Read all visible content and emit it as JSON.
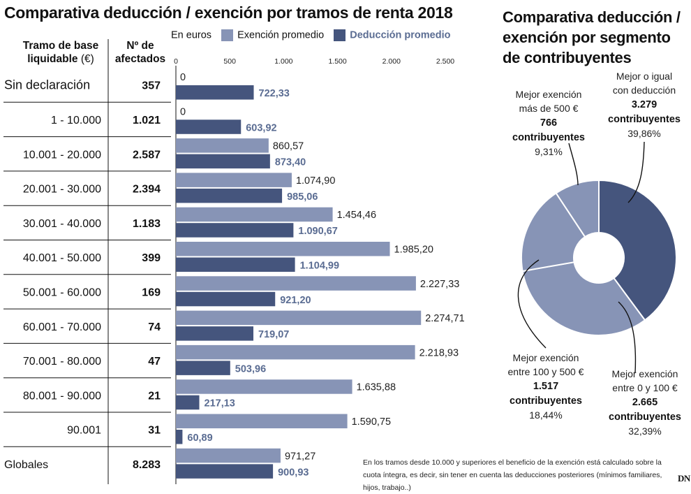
{
  "titles": {
    "left": "Comparativa deducción / exención por tramos de renta 2018",
    "right": "Comparativa deducción / exención por segmento de contribuyentes"
  },
  "table": {
    "col1_header": "Tramo de base liquidable",
    "col1_header_unit": "(€)",
    "col2_header": "Nº de afectados",
    "units_label": "En euros"
  },
  "colors": {
    "exencion": "#8794b6",
    "deduccion": "#45557d",
    "deduccion_text": "#5a6c92"
  },
  "chart_data": [
    {
      "type": "bar",
      "title": "Comparativa deducción / exención por tramos de renta 2018",
      "xlabel": "En euros",
      "xlim": [
        0,
        2500
      ],
      "xticks": [
        "0",
        "500",
        "1.000",
        "1.500",
        "2.000",
        "2.500"
      ],
      "xtick_values": [
        0,
        500,
        1000,
        1500,
        2000,
        2500
      ],
      "categories": [
        "Sin declaración",
        "1 -  10.000",
        "10.001  -  20.000",
        "20.001  -  30.000",
        "30.001  -  40.000",
        "40.001  -  50.000",
        "50.001  -  60.000",
        "60.001  -  70.000",
        "70.001  -  80.000",
        "80.001  -  90.000",
        "90.001",
        "Globales"
      ],
      "afectados": [
        "357",
        "1.021",
        "2.587",
        "2.394",
        "1.183",
        "399",
        "169",
        "74",
        "47",
        "21",
        "31",
        "8.283"
      ],
      "series": [
        {
          "name": "Exención promedio",
          "values": [
            0,
            0,
            860.57,
            1074.9,
            1454.46,
            1985.2,
            2227.33,
            2274.71,
            2218.93,
            1635.88,
            1590.75,
            971.27
          ],
          "labels": [
            "0",
            "0",
            "860,57",
            "1.074,90",
            "1.454,46",
            "1.985,20",
            "2.227,33",
            "2.274,71",
            "2.218,93",
            "1.635,88",
            "1.590,75",
            "971,27"
          ]
        },
        {
          "name": "Deducción promedio",
          "values": [
            722.33,
            603.92,
            873.4,
            985.06,
            1090.67,
            1104.99,
            921.2,
            719.07,
            503.96,
            217.13,
            60.89,
            900.93
          ],
          "labels": [
            "722,33",
            "603,92",
            "873,40",
            "985,06",
            "1.090,67",
            "1.104,99",
            "921,20",
            "719,07",
            "503,96",
            "217,13",
            "60,89",
            "900,93"
          ]
        }
      ]
    },
    {
      "type": "pie",
      "title": "Comparativa deducción / exención por segmento de contribuyentes",
      "slices": [
        {
          "name": "Mejor o igual con deducción",
          "count": "3.279",
          "unit": "contribuyentes",
          "percent": 39.86,
          "percent_label": "39,86%",
          "color": "#45557d"
        },
        {
          "name": "Mejor exención entre 0 y 100 €",
          "count": "2.665",
          "unit": "contribuyentes",
          "percent": 32.39,
          "percent_label": "32,39%",
          "color": "#8794b6"
        },
        {
          "name": "Mejor exención entre 100 y 500 €",
          "count": "1.517",
          "unit": "contribuyentes",
          "percent": 18.44,
          "percent_label": "18,44%",
          "color": "#8794b6"
        },
        {
          "name": "Mejor exención más de 500 €",
          "count": "766",
          "unit": "contribuyentes",
          "percent": 9.31,
          "percent_label": "9,31%",
          "color": "#8794b6"
        }
      ],
      "labels": {
        "s0": [
          "Mejor o igual",
          "con deducción"
        ],
        "s1": [
          "Mejor exención",
          "entre 0 y 100 €"
        ],
        "s2": [
          "Mejor exención",
          "entre 100 y 500 €"
        ],
        "s3": [
          "Mejor exención",
          "más de 500 €"
        ]
      }
    }
  ],
  "footnote": "En los tramos desde 10.000 y superiores el beneficio de la exención está calculado sobre la cuota íntegra, es decir, sin tener en cuenta las deducciones posteriores (mínimos familiares, hijos, trabajo..)",
  "logo": "DN"
}
